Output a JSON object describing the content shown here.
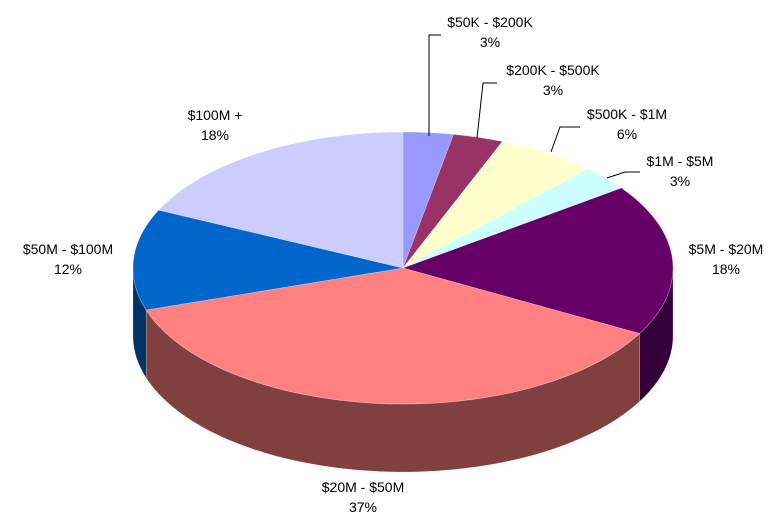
{
  "chart_data": {
    "type": "pie",
    "title": "",
    "categories": [
      "$50K - $200K",
      "$200K - $500K",
      "$500K - $1M",
      "$1M - $5M",
      "$5M - $20M",
      "$20M - $50M",
      "$50M - $100M",
      "$100M +"
    ],
    "values": [
      3,
      3,
      6,
      3,
      18,
      37,
      12,
      18
    ],
    "value_labels": [
      "3%",
      "3%",
      "6%",
      "3%",
      "18%",
      "37%",
      "12%",
      "18%"
    ],
    "colors": [
      "#9999FF",
      "#993366",
      "#FFFFCC",
      "#CCFFFF",
      "#660066",
      "#FF8080",
      "#0066CC",
      "#CCCCFF"
    ],
    "side_colors": [
      "#5c5c99",
      "#5c1f3d",
      "#99997a",
      "#7a9999",
      "#33003a",
      "#80403f",
      "#003366",
      "#7a7a99"
    ],
    "style": "3d-pie",
    "legend": "none"
  }
}
